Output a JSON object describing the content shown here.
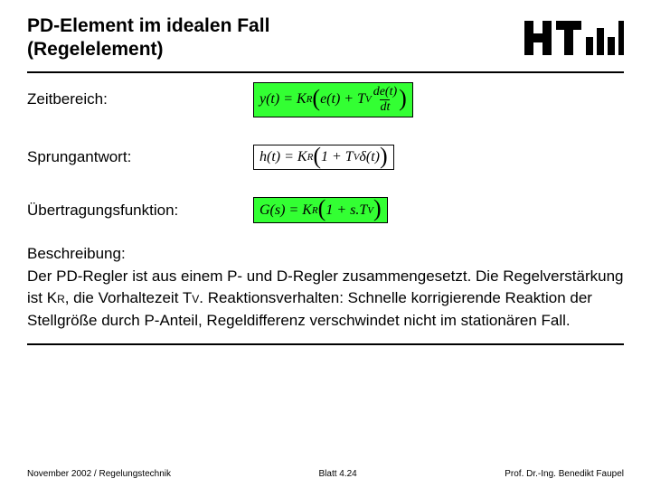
{
  "header": {
    "title_line1": "PD-Element im idealen Fall",
    "title_line2": "(Regelelement)"
  },
  "rows": {
    "zeit": {
      "label": "Zeitbereich:",
      "formula_html": "y(t) = K<span class='sub'>R</span><span class='bigparen'>(</span>e(t) + T<span class='sub'>V</span> <span class='frac'><span class='num'>de(t)</span><span class='den'>dt</span></span><span class='bigparen'>)</span>"
    },
    "sprung": {
      "label": "Sprungantwort:",
      "formula_html": "h(t) = K<span class='sub'>R</span> <span class='bigparen'>(</span>1 + T<span class='sub'>V</span> &delta;(t)<span class='bigparen'>)</span>"
    },
    "uebertrag": {
      "label": "Übertragungsfunktion:",
      "formula_html": "G(s) = K<span class='sub'>R</span> <span class='bigparen'>(</span>1 + s.T<span class='sub'>V</span><span class='bigparen'>)</span>"
    }
  },
  "desc": {
    "heading": "Beschreibung:",
    "body_html": "Der PD-Regler ist aus einem P- und D-Regler zusammengesetzt. Die Regelverstärkung ist K<span class='sub2'>R</span>, die Vorhaltezeit T<span class='sub2'>V</span>. Reaktionsverhalten: Schnelle korrigierende Reaktion der Stellgröße durch P-Anteil, Regeldifferenz verschwindet nicht im stationären Fall."
  },
  "footer": {
    "left": "November 2002 / Regelungstechnik",
    "center": "Blatt 4.24",
    "right": "Prof. Dr.-Ing. Benedikt Faupel"
  },
  "logo": {
    "h": "#000000",
    "bars": "#000000"
  }
}
